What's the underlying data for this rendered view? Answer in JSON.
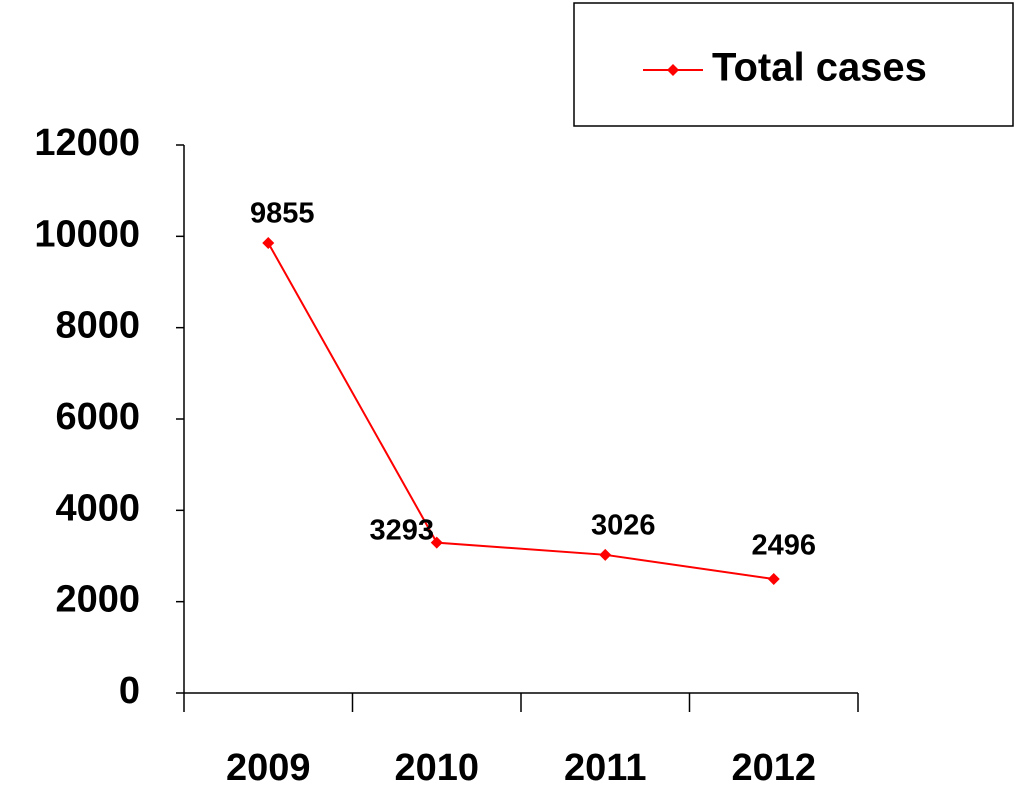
{
  "chart_data": {
    "type": "line",
    "categories": [
      "2009",
      "2010",
      "2011",
      "2012"
    ],
    "series": [
      {
        "name": "Total cases",
        "color": "#ff0000",
        "values": [
          9855,
          3293,
          3026,
          2496
        ]
      }
    ],
    "ylim": [
      0,
      12000
    ],
    "yticks": [
      0,
      2000,
      4000,
      6000,
      8000,
      10000,
      12000
    ],
    "grid": false,
    "legend": "top-right",
    "data_labels": true
  }
}
